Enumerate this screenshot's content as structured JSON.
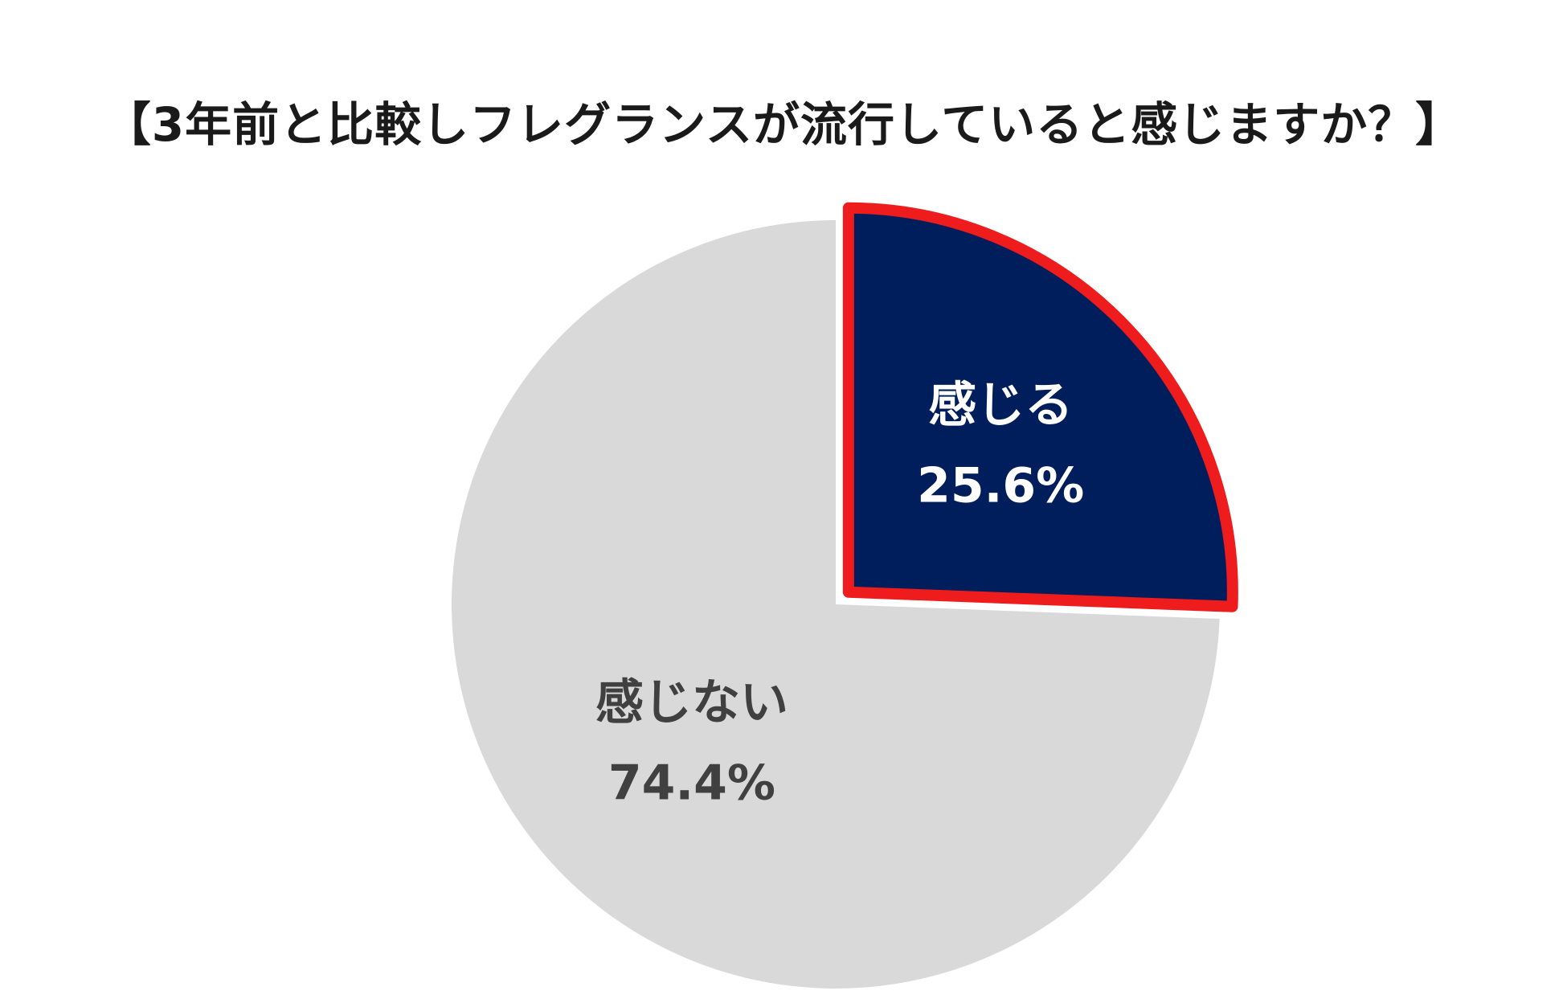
{
  "chart_data": {
    "type": "pie",
    "title": "【3年前と比較しフレグランスが流行していると感じますか？】",
    "slices": [
      {
        "label": "感じる",
        "value": 25.6,
        "value_label": "25.6%",
        "color": "#001e5c",
        "border_color": "#ee1c1c",
        "exploded": true,
        "text_color": "#ffffff"
      },
      {
        "label": "感じない",
        "value": 74.4,
        "value_label": "74.4%",
        "color": "#d9d9d9",
        "border_color": "",
        "exploded": false,
        "text_color": "#404040"
      }
    ],
    "start_angle": "12 o'clock",
    "direction": "clockwise",
    "legend": "none"
  }
}
